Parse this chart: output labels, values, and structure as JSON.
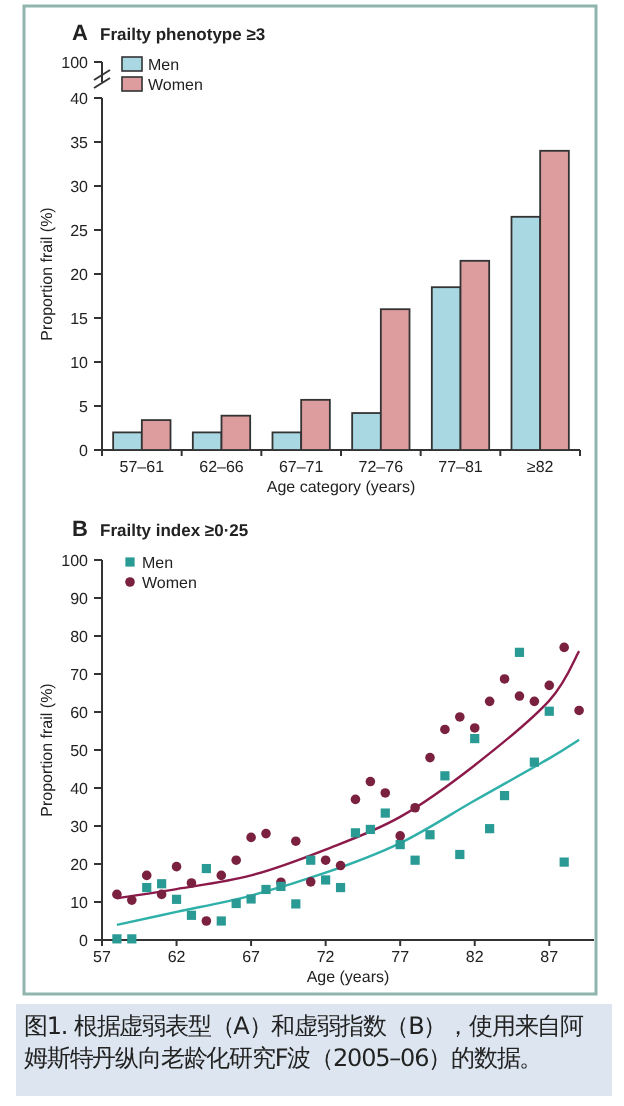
{
  "chart_data": [
    {
      "type": "bar",
      "title": "A",
      "subtitle": "Frailty phenotype ≥3",
      "xlabel": "Age category (years)",
      "ylabel": "Proportion frail (%)",
      "categories": [
        "57–61",
        "62–66",
        "67–71",
        "72–76",
        "77–81",
        "≥82"
      ],
      "ylim": [
        0,
        40
      ],
      "yticks": [
        0,
        5,
        10,
        15,
        20,
        25,
        30,
        35,
        40
      ],
      "legend": "top left",
      "annotations": [
        "100"
      ],
      "series": [
        {
          "name": "Men",
          "color": "#a9d8e3",
          "values": [
            2,
            2,
            2,
            4.2,
            18.5,
            26.5
          ]
        },
        {
          "name": "Women",
          "color": "#dd9d9e",
          "values": [
            3.4,
            3.9,
            5.7,
            16,
            21.5,
            34
          ]
        }
      ]
    },
    {
      "type": "scatter",
      "title": "B",
      "subtitle": "Frailty index ≥0·25",
      "xlabel": "Age (years)",
      "ylabel": "Proportion frail (%)",
      "xlim": [
        57,
        90
      ],
      "xticks": [
        57,
        62,
        67,
        72,
        77,
        82,
        87
      ],
      "ylim": [
        0,
        100
      ],
      "yticks": [
        0,
        10,
        20,
        30,
        40,
        50,
        60,
        70,
        80,
        90,
        100
      ],
      "legend": "top left",
      "annotations": [
        "图1. 根据虚弱表型（A）和虚弱指数（B），使用来自阿姆斯特丹纵向老龄化研究F波（2005–06）的数据。"
      ],
      "series": [
        {
          "name": "Men",
          "type": "scatter",
          "marker": "square",
          "color": "#2a9a94",
          "x": [
            58,
            59,
            60,
            61,
            62,
            63,
            64,
            65,
            66,
            67,
            68,
            69,
            70,
            71,
            72,
            73,
            74,
            75,
            76,
            77,
            78,
            79,
            80,
            81,
            82,
            83,
            84,
            85,
            86,
            87,
            88
          ],
          "values": [
            0.3,
            0.3,
            13.8,
            14.8,
            10.7,
            6.5,
            18.8,
            5,
            9.6,
            10.8,
            13.3,
            14.1,
            9.5,
            21,
            15.8,
            13.8,
            28.2,
            29.1,
            33.4,
            25.1,
            21,
            27.7,
            43.2,
            22.5,
            53,
            29.3,
            38,
            75.7,
            46.8,
            60.2,
            20.5
          ]
        },
        {
          "name": "Women",
          "type": "scatter",
          "marker": "circle",
          "color": "#7a2140",
          "x": [
            58,
            59,
            60,
            61,
            62,
            63,
            64,
            65,
            66,
            67,
            68,
            69,
            70,
            71,
            72,
            73,
            74,
            75,
            76,
            77,
            78,
            79,
            80,
            81,
            82,
            83,
            84,
            85,
            86,
            87,
            88,
            89
          ],
          "values": [
            12,
            10.5,
            17,
            12,
            19.3,
            15,
            5,
            17,
            21,
            27,
            28,
            15.2,
            26,
            15.3,
            21,
            19.6,
            37,
            41.7,
            38.7,
            27.4,
            34.8,
            48,
            55.4,
            58.7,
            55.8,
            62.8,
            68.7,
            64.2,
            62.8,
            67,
            77,
            60.4
          ]
        },
        {
          "type": "line",
          "color": "#2fb0a8",
          "x": [
            58,
            62,
            67,
            72,
            77,
            82,
            87,
            89
          ],
          "values": [
            4,
            7.4,
            11.7,
            17.7,
            25.5,
            36.7,
            47.8,
            52.7
          ]
        },
        {
          "type": "line",
          "color": "#8b1a4a",
          "x": [
            58,
            62,
            67,
            72,
            77,
            82,
            87,
            89
          ],
          "values": [
            11,
            13.4,
            17,
            23.8,
            32.4,
            46,
            63,
            76
          ]
        }
      ]
    }
  ]
}
